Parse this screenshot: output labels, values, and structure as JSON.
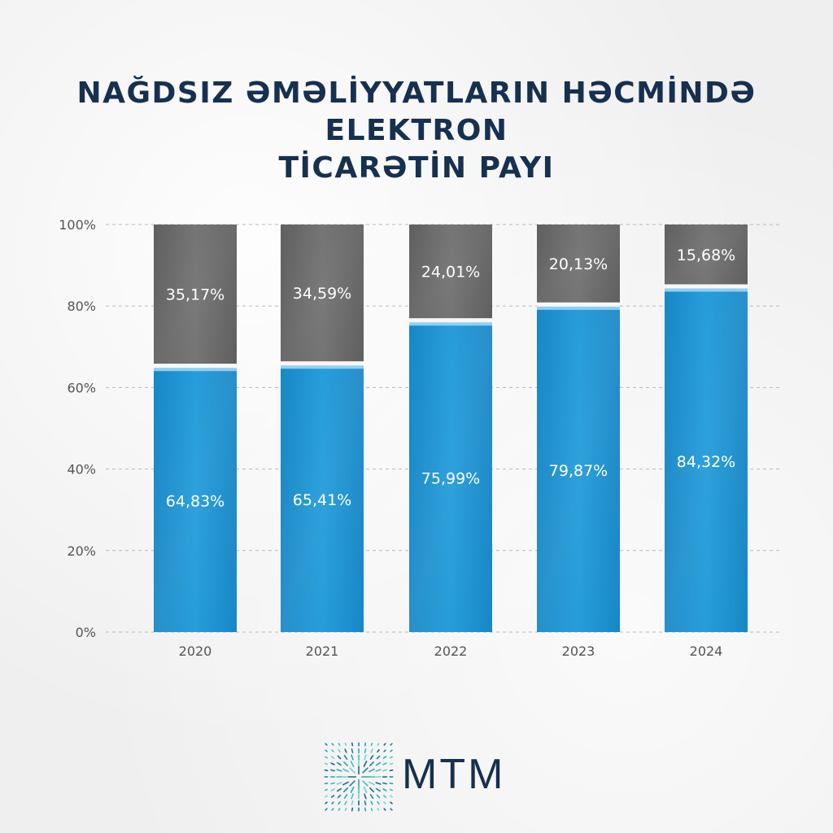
{
  "title_line1": "NAĞDSIZ ƏMƏLİYYATLARIN HƏCMİNDƏ ELEKTRON",
  "title_line2": "TİCARƏTİN PAYI",
  "logo_text": "MTM",
  "colors": {
    "title": "#16304f",
    "ecommerce": "#1b93d4",
    "other": "#6a6a6a",
    "axis_text": "#555555",
    "grid": "#b9b9b9"
  },
  "chart_data": {
    "type": "bar",
    "stacked": true,
    "categories": [
      "2020",
      "2021",
      "2022",
      "2023",
      "2024"
    ],
    "series": [
      {
        "values": [
          64.83,
          65.41,
          75.99,
          79.87,
          84.32
        ],
        "labels": [
          "64,83%",
          "65,41%",
          "75,99%",
          "79,87%",
          "84,32%"
        ],
        "color": "#1b93d4"
      },
      {
        "values": [
          35.17,
          34.59,
          24.01,
          20.13,
          15.68
        ],
        "labels": [
          "35,17%",
          "34,59%",
          "24,01%",
          "20,13%",
          "15,68%"
        ],
        "color": "#6a6a6a"
      }
    ],
    "yticks": [
      "0%",
      "20%",
      "40%",
      "60%",
      "80%",
      "100%"
    ],
    "ylim": [
      0,
      100
    ],
    "grid": true,
    "legend": "none"
  }
}
